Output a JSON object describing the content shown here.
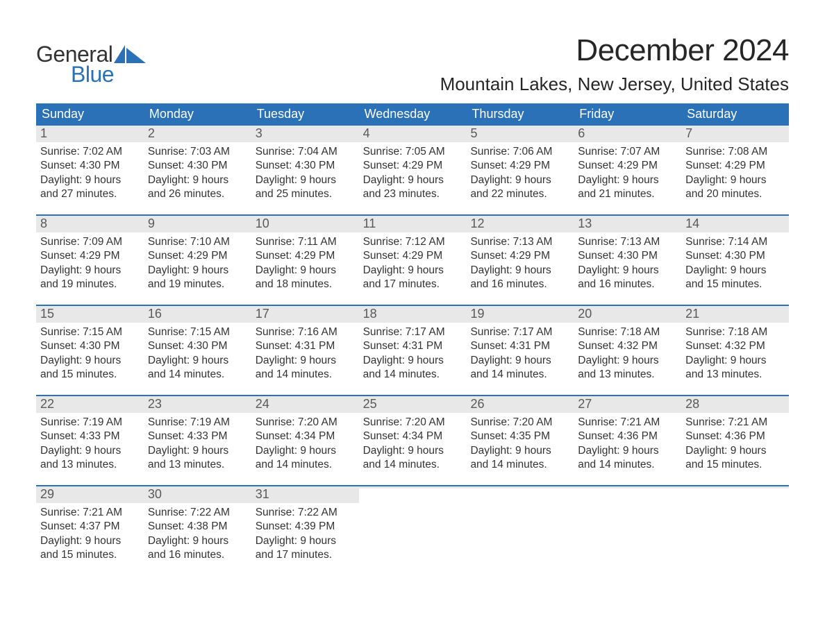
{
  "brand": {
    "word1": "General",
    "word2": "Blue",
    "flag_color": "#2a71b8"
  },
  "title": "December 2024",
  "location": "Mountain Lakes, New Jersey, United States",
  "colors": {
    "header_bg": "#2a71b8",
    "header_text": "#ffffff",
    "daynum_bg": "#e8e8e8",
    "daynum_text": "#595959",
    "body_text": "#333333",
    "rule": "#2a71b8"
  },
  "day_headers": [
    "Sunday",
    "Monday",
    "Tuesday",
    "Wednesday",
    "Thursday",
    "Friday",
    "Saturday"
  ],
  "weeks": [
    [
      {
        "n": "1",
        "sunrise": "Sunrise: 7:02 AM",
        "sunset": "Sunset: 4:30 PM",
        "d1": "Daylight: 9 hours",
        "d2": "and 27 minutes."
      },
      {
        "n": "2",
        "sunrise": "Sunrise: 7:03 AM",
        "sunset": "Sunset: 4:30 PM",
        "d1": "Daylight: 9 hours",
        "d2": "and 26 minutes."
      },
      {
        "n": "3",
        "sunrise": "Sunrise: 7:04 AM",
        "sunset": "Sunset: 4:30 PM",
        "d1": "Daylight: 9 hours",
        "d2": "and 25 minutes."
      },
      {
        "n": "4",
        "sunrise": "Sunrise: 7:05 AM",
        "sunset": "Sunset: 4:29 PM",
        "d1": "Daylight: 9 hours",
        "d2": "and 23 minutes."
      },
      {
        "n": "5",
        "sunrise": "Sunrise: 7:06 AM",
        "sunset": "Sunset: 4:29 PM",
        "d1": "Daylight: 9 hours",
        "d2": "and 22 minutes."
      },
      {
        "n": "6",
        "sunrise": "Sunrise: 7:07 AM",
        "sunset": "Sunset: 4:29 PM",
        "d1": "Daylight: 9 hours",
        "d2": "and 21 minutes."
      },
      {
        "n": "7",
        "sunrise": "Sunrise: 7:08 AM",
        "sunset": "Sunset: 4:29 PM",
        "d1": "Daylight: 9 hours",
        "d2": "and 20 minutes."
      }
    ],
    [
      {
        "n": "8",
        "sunrise": "Sunrise: 7:09 AM",
        "sunset": "Sunset: 4:29 PM",
        "d1": "Daylight: 9 hours",
        "d2": "and 19 minutes."
      },
      {
        "n": "9",
        "sunrise": "Sunrise: 7:10 AM",
        "sunset": "Sunset: 4:29 PM",
        "d1": "Daylight: 9 hours",
        "d2": "and 19 minutes."
      },
      {
        "n": "10",
        "sunrise": "Sunrise: 7:11 AM",
        "sunset": "Sunset: 4:29 PM",
        "d1": "Daylight: 9 hours",
        "d2": "and 18 minutes."
      },
      {
        "n": "11",
        "sunrise": "Sunrise: 7:12 AM",
        "sunset": "Sunset: 4:29 PM",
        "d1": "Daylight: 9 hours",
        "d2": "and 17 minutes."
      },
      {
        "n": "12",
        "sunrise": "Sunrise: 7:13 AM",
        "sunset": "Sunset: 4:29 PM",
        "d1": "Daylight: 9 hours",
        "d2": "and 16 minutes."
      },
      {
        "n": "13",
        "sunrise": "Sunrise: 7:13 AM",
        "sunset": "Sunset: 4:30 PM",
        "d1": "Daylight: 9 hours",
        "d2": "and 16 minutes."
      },
      {
        "n": "14",
        "sunrise": "Sunrise: 7:14 AM",
        "sunset": "Sunset: 4:30 PM",
        "d1": "Daylight: 9 hours",
        "d2": "and 15 minutes."
      }
    ],
    [
      {
        "n": "15",
        "sunrise": "Sunrise: 7:15 AM",
        "sunset": "Sunset: 4:30 PM",
        "d1": "Daylight: 9 hours",
        "d2": "and 15 minutes."
      },
      {
        "n": "16",
        "sunrise": "Sunrise: 7:15 AM",
        "sunset": "Sunset: 4:30 PM",
        "d1": "Daylight: 9 hours",
        "d2": "and 14 minutes."
      },
      {
        "n": "17",
        "sunrise": "Sunrise: 7:16 AM",
        "sunset": "Sunset: 4:31 PM",
        "d1": "Daylight: 9 hours",
        "d2": "and 14 minutes."
      },
      {
        "n": "18",
        "sunrise": "Sunrise: 7:17 AM",
        "sunset": "Sunset: 4:31 PM",
        "d1": "Daylight: 9 hours",
        "d2": "and 14 minutes."
      },
      {
        "n": "19",
        "sunrise": "Sunrise: 7:17 AM",
        "sunset": "Sunset: 4:31 PM",
        "d1": "Daylight: 9 hours",
        "d2": "and 14 minutes."
      },
      {
        "n": "20",
        "sunrise": "Sunrise: 7:18 AM",
        "sunset": "Sunset: 4:32 PM",
        "d1": "Daylight: 9 hours",
        "d2": "and 13 minutes."
      },
      {
        "n": "21",
        "sunrise": "Sunrise: 7:18 AM",
        "sunset": "Sunset: 4:32 PM",
        "d1": "Daylight: 9 hours",
        "d2": "and 13 minutes."
      }
    ],
    [
      {
        "n": "22",
        "sunrise": "Sunrise: 7:19 AM",
        "sunset": "Sunset: 4:33 PM",
        "d1": "Daylight: 9 hours",
        "d2": "and 13 minutes."
      },
      {
        "n": "23",
        "sunrise": "Sunrise: 7:19 AM",
        "sunset": "Sunset: 4:33 PM",
        "d1": "Daylight: 9 hours",
        "d2": "and 13 minutes."
      },
      {
        "n": "24",
        "sunrise": "Sunrise: 7:20 AM",
        "sunset": "Sunset: 4:34 PM",
        "d1": "Daylight: 9 hours",
        "d2": "and 14 minutes."
      },
      {
        "n": "25",
        "sunrise": "Sunrise: 7:20 AM",
        "sunset": "Sunset: 4:34 PM",
        "d1": "Daylight: 9 hours",
        "d2": "and 14 minutes."
      },
      {
        "n": "26",
        "sunrise": "Sunrise: 7:20 AM",
        "sunset": "Sunset: 4:35 PM",
        "d1": "Daylight: 9 hours",
        "d2": "and 14 minutes."
      },
      {
        "n": "27",
        "sunrise": "Sunrise: 7:21 AM",
        "sunset": "Sunset: 4:36 PM",
        "d1": "Daylight: 9 hours",
        "d2": "and 14 minutes."
      },
      {
        "n": "28",
        "sunrise": "Sunrise: 7:21 AM",
        "sunset": "Sunset: 4:36 PM",
        "d1": "Daylight: 9 hours",
        "d2": "and 15 minutes."
      }
    ],
    [
      {
        "n": "29",
        "sunrise": "Sunrise: 7:21 AM",
        "sunset": "Sunset: 4:37 PM",
        "d1": "Daylight: 9 hours",
        "d2": "and 15 minutes."
      },
      {
        "n": "30",
        "sunrise": "Sunrise: 7:22 AM",
        "sunset": "Sunset: 4:38 PM",
        "d1": "Daylight: 9 hours",
        "d2": "and 16 minutes."
      },
      {
        "n": "31",
        "sunrise": "Sunrise: 7:22 AM",
        "sunset": "Sunset: 4:39 PM",
        "d1": "Daylight: 9 hours",
        "d2": "and 17 minutes."
      },
      {
        "empty": true
      },
      {
        "empty": true
      },
      {
        "empty": true
      },
      {
        "empty": true
      }
    ]
  ]
}
